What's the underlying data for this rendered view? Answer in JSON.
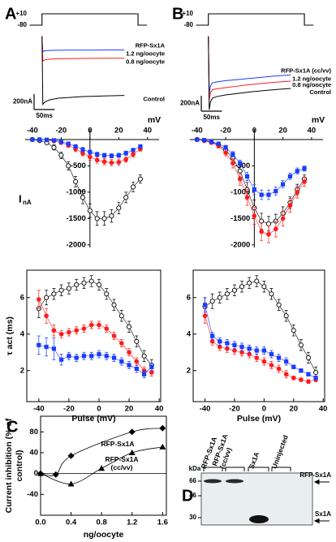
{
  "panel_labels": [
    "A",
    "B",
    "C",
    "D"
  ],
  "chart_data": [
    {
      "type": "trace",
      "label": "RFP-Sx1A",
      "protocol": {
        "x": [
          -30,
          0,
          0,
          233,
          233,
          255
        ],
        "values": [
          -80,
          -80,
          10,
          10,
          -80,
          -80
        ],
        "ylim": [
          -80,
          10
        ],
        "yticks": [
          {
            "value": 10,
            "label": "+10"
          },
          -80
        ]
      },
      "x": [
        0,
        2,
        5,
        10,
        20,
        40,
        70,
        100,
        130,
        160,
        200
      ],
      "xlim": [
        -33,
        292
      ],
      "ylim": [
        -1000,
        50
      ],
      "series": [
        {
          "name": "1.2 ng/oocyte",
          "color": "#1a3cff",
          "values": [
            0,
            -200,
            -190,
            -185,
            -182,
            -180,
            -179,
            -178,
            -178,
            -177,
            -177
          ]
        },
        {
          "name": "0.8 ng/oocyte",
          "color": "#ff1a1a",
          "values": [
            0,
            -320,
            -310,
            -300,
            -295,
            -290,
            -288,
            -286,
            -285,
            -284,
            -283
          ]
        },
        {
          "name": "Control",
          "color": "#000000",
          "values": [
            0,
            -880,
            -860,
            -840,
            -820,
            -800,
            -790,
            -780,
            -775,
            -770,
            -765
          ]
        }
      ],
      "scale_bars": {
        "y": 200,
        "y_label": "200nA",
        "x": 50,
        "x_label": "50ms"
      }
    },
    {
      "type": "trace",
      "label": "RFP-Sx1A (cc/vv)",
      "protocol": {
        "x": [
          -30,
          0,
          0,
          233,
          233,
          255
        ],
        "values": [
          -80,
          -80,
          10,
          10,
          -80,
          -80
        ],
        "ylim": [
          -80,
          10
        ],
        "yticks": [
          {
            "value": 10,
            "label": "+10"
          },
          -80
        ]
      },
      "x": [
        0,
        2,
        5,
        10,
        20,
        40,
        70,
        100,
        130,
        160,
        200
      ],
      "xlim": [
        -33,
        292
      ],
      "ylim": [
        -1000,
        50
      ],
      "series": [
        {
          "name": "1.2 ng/oocyte",
          "color": "#1a3cff",
          "values": [
            0,
            -750,
            -640,
            -600,
            -590,
            -575,
            -560,
            -545,
            -530,
            -515,
            -500
          ]
        },
        {
          "name": "0.8 ng/oocyte",
          "color": "#ff1a1a",
          "values": [
            0,
            -820,
            -730,
            -690,
            -680,
            -665,
            -645,
            -625,
            -610,
            -595,
            -580
          ]
        },
        {
          "name": "Control",
          "color": "#000000",
          "values": [
            0,
            -950,
            -850,
            -800,
            -780,
            -760,
            -740,
            -720,
            -705,
            -690,
            -675
          ]
        }
      ],
      "scale_bars": {
        "y": 200,
        "y_label": "200nA",
        "x": 50,
        "x_label": "50ms"
      }
    },
    {
      "type": "line",
      "axes_cross_origin": true,
      "x": [
        -40,
        -35,
        -30,
        -25,
        -20,
        -15,
        -10,
        -5,
        0,
        5,
        10,
        15,
        20,
        25,
        30,
        35
      ],
      "xlim": [
        -45,
        48
      ],
      "ylim": [
        -2050,
        200
      ],
      "xticks": [
        -40,
        -20,
        0,
        20,
        40
      ],
      "yticks": [
        -2000,
        -1500,
        -1000,
        -500
      ],
      "xlabel": "mV",
      "ylabel": "I",
      "ylabel_sub": "nA",
      "series": [
        {
          "color": "#000000",
          "marker": "open-circle",
          "values": [
            0,
            -20,
            -60,
            -150,
            -300,
            -500,
            -800,
            -1100,
            -1350,
            -1500,
            -1500,
            -1450,
            -1300,
            -1100,
            -900,
            -750
          ],
          "errors": [
            10,
            20,
            30,
            50,
            60,
            80,
            100,
            120,
            130,
            130,
            130,
            120,
            110,
            100,
            90,
            80
          ]
        },
        {
          "color": "#ff1a1a",
          "marker": "circle",
          "values": [
            0,
            0,
            -10,
            -30,
            -60,
            -110,
            -180,
            -260,
            -330,
            -390,
            -420,
            -440,
            -430,
            -380,
            -280,
            -180
          ],
          "errors": [
            5,
            5,
            10,
            20,
            30,
            40,
            50,
            50,
            60,
            60,
            60,
            60,
            60,
            50,
            50,
            40
          ]
        },
        {
          "color": "#1a3cff",
          "marker": "square",
          "values": [
            0,
            0,
            -5,
            -15,
            -40,
            -80,
            -130,
            -190,
            -240,
            -280,
            -300,
            -310,
            -300,
            -260,
            -200,
            -130
          ],
          "errors": [
            5,
            5,
            10,
            20,
            20,
            30,
            30,
            40,
            40,
            40,
            40,
            40,
            40,
            40,
            30,
            30
          ]
        }
      ]
    },
    {
      "type": "line",
      "axes_cross_origin": true,
      "x": [
        -40,
        -35,
        -30,
        -25,
        -20,
        -15,
        -10,
        -5,
        0,
        5,
        10,
        15,
        20,
        25,
        30,
        35
      ],
      "xlim": [
        -45,
        48
      ],
      "ylim": [
        -2050,
        200
      ],
      "xticks": [
        -40,
        -20,
        0,
        20,
        40
      ],
      "yticks": [
        -2000,
        -1500,
        -1000,
        -500
      ],
      "xlabel": "mV",
      "series": [
        {
          "color": "#000000",
          "marker": "open-circle",
          "values": [
            0,
            -20,
            -50,
            -100,
            -200,
            -350,
            -600,
            -950,
            -1300,
            -1550,
            -1600,
            -1550,
            -1400,
            -1200,
            -950,
            -750
          ],
          "errors": [
            10,
            20,
            30,
            40,
            60,
            80,
            110,
            140,
            150,
            150,
            140,
            130,
            120,
            110,
            100,
            80
          ]
        },
        {
          "color": "#ff1a1a",
          "marker": "circle",
          "values": [
            0,
            -20,
            -60,
            -120,
            -250,
            -450,
            -750,
            -1100,
            -1450,
            -1750,
            -1800,
            -1700,
            -1500,
            -1250,
            -1000,
            -800
          ],
          "errors": [
            10,
            20,
            30,
            40,
            60,
            90,
            120,
            150,
            160,
            170,
            160,
            150,
            140,
            130,
            110,
            90
          ]
        },
        {
          "color": "#1a3cff",
          "marker": "square",
          "values": [
            0,
            -10,
            -40,
            -80,
            -150,
            -280,
            -450,
            -700,
            -950,
            -1050,
            -1050,
            -980,
            -850,
            -700,
            -600,
            -550
          ],
          "errors": [
            10,
            10,
            20,
            30,
            40,
            50,
            60,
            80,
            90,
            90,
            90,
            80,
            70,
            60,
            60,
            50
          ]
        }
      ]
    },
    {
      "type": "line",
      "x": [
        -40,
        -35,
        -30,
        -25,
        -20,
        -15,
        -10,
        -5,
        0,
        5,
        10,
        15,
        20,
        25,
        30,
        35
      ],
      "xlim": [
        -48,
        41
      ],
      "ylim": [
        0.3,
        7.5
      ],
      "xticks": [
        -40,
        -20,
        0,
        20,
        40
      ],
      "yticks": [
        2,
        4,
        6
      ],
      "xlabel": "Pulse (mV)",
      "ylabel": "τ act (ms)",
      "series": [
        {
          "color": "#000000",
          "marker": "open-circle",
          "values": [
            5.4,
            6.0,
            6.2,
            6.4,
            6.5,
            6.7,
            6.8,
            6.9,
            6.7,
            6.2,
            5.6,
            5.0,
            4.4,
            3.6,
            2.8,
            2.3
          ],
          "errors": [
            0.5,
            0.4,
            0.3,
            0.3,
            0.3,
            0.3,
            0.3,
            0.3,
            0.3,
            0.3,
            0.3,
            0.3,
            0.3,
            0.3,
            0.3,
            0.3
          ]
        },
        {
          "color": "#ff1a1a",
          "marker": "circle",
          "values": [
            5.9,
            5.0,
            4.2,
            4.0,
            4.1,
            4.2,
            4.3,
            4.5,
            4.5,
            4.3,
            3.9,
            3.5,
            3.0,
            2.5,
            2.0,
            1.9
          ],
          "errors": [
            0.5,
            0.4,
            0.3,
            0.2,
            0.2,
            0.2,
            0.2,
            0.2,
            0.2,
            0.2,
            0.2,
            0.2,
            0.2,
            0.2,
            0.2,
            0.2
          ]
        },
        {
          "color": "#1a3cff",
          "marker": "square",
          "values": [
            3.4,
            3.3,
            3.2,
            2.6,
            2.8,
            2.7,
            2.8,
            2.8,
            2.9,
            2.8,
            2.7,
            2.5,
            2.3,
            2.1,
            1.8,
            2.2
          ],
          "errors": [
            0.5,
            0.5,
            0.6,
            0.3,
            0.2,
            0.2,
            0.2,
            0.2,
            0.2,
            0.2,
            0.2,
            0.2,
            0.2,
            0.2,
            0.2,
            0.2
          ]
        }
      ]
    },
    {
      "type": "line",
      "x": [
        -40,
        -35,
        -30,
        -25,
        -20,
        -15,
        -10,
        -5,
        0,
        5,
        10,
        15,
        20,
        25,
        30,
        35
      ],
      "xlim": [
        -48,
        41
      ],
      "ylim": [
        0.3,
        7.5
      ],
      "xticks": [
        -40,
        -20,
        0,
        20,
        40
      ],
      "yticks": [
        2,
        4,
        6
      ],
      "xlabel": "Pulse (mV)",
      "series": [
        {
          "color": "#000000",
          "marker": "open-circle",
          "values": [
            5.5,
            5.8,
            6.0,
            6.2,
            6.4,
            6.6,
            6.8,
            6.9,
            6.6,
            6.2,
            5.6,
            5.0,
            4.2,
            3.4,
            2.7,
            1.9
          ],
          "errors": [
            0.5,
            0.4,
            0.3,
            0.3,
            0.3,
            0.3,
            0.3,
            0.3,
            0.3,
            0.3,
            0.3,
            0.3,
            0.3,
            0.3,
            0.3,
            0.3
          ]
        },
        {
          "color": "#ff1a1a",
          "marker": "circle",
          "values": [
            5.0,
            3.6,
            3.3,
            3.2,
            3.1,
            3.0,
            2.9,
            2.7,
            2.5,
            2.3,
            2.1,
            1.8,
            1.6,
            1.5,
            1.4,
            1.5
          ],
          "errors": [
            0.4,
            0.2,
            0.2,
            0.2,
            0.2,
            0.2,
            0.2,
            0.2,
            0.2,
            0.2,
            0.2,
            0.2,
            0.1,
            0.1,
            0.1,
            0.1
          ]
        },
        {
          "color": "#1a3cff",
          "marker": "square",
          "values": [
            5.6,
            3.9,
            3.6,
            3.5,
            3.4,
            3.3,
            3.2,
            3.1,
            3.1,
            2.9,
            2.7,
            2.5,
            2.2,
            2.0,
            1.8,
            1.6
          ],
          "errors": [
            0.4,
            0.2,
            0.2,
            0.2,
            0.2,
            0.2,
            0.2,
            0.2,
            0.2,
            0.2,
            0.2,
            0.2,
            0.1,
            0.1,
            0.1,
            0.1
          ]
        }
      ]
    },
    {
      "type": "scatter",
      "fit": true,
      "zero_line": true,
      "xlim": [
        0,
        1.65
      ],
      "ylim": [
        -80,
        110
      ],
      "xticks": [
        {
          "value": 0,
          "label": "0.0"
        },
        0.4,
        0.8,
        1.2,
        1.6
      ],
      "yticks": [
        -40,
        0,
        40,
        80
      ],
      "xlabel": "ng/oocyte",
      "ylabel": "Current inhibition (% of control)",
      "series": [
        {
          "name": "RFP-Sx1A",
          "color": "#000000",
          "marker": "diamond",
          "x": [
            0,
            0.2,
            0.4,
            1.2,
            1.6
          ],
          "values": [
            0,
            -2,
            34,
            80,
            87
          ]
        },
        {
          "name": "RFP-Sx1A (cc/vv)",
          "color": "#000000",
          "marker": "triangle",
          "x": [
            0,
            0.4,
            0.8,
            1.2,
            1.6
          ],
          "values": [
            0,
            -20,
            10,
            40,
            51
          ]
        }
      ]
    }
  ],
  "blot": {
    "kda_label": "kDa",
    "markers": [
      66,
      46,
      30
    ],
    "lanes": [
      "RFP-Sx1A",
      "RFP-Sx1A (cc/vv)",
      "Sx1A",
      "Uninjected"
    ],
    "bands": [
      "RFP-Sx1A",
      "Sx1A"
    ]
  }
}
